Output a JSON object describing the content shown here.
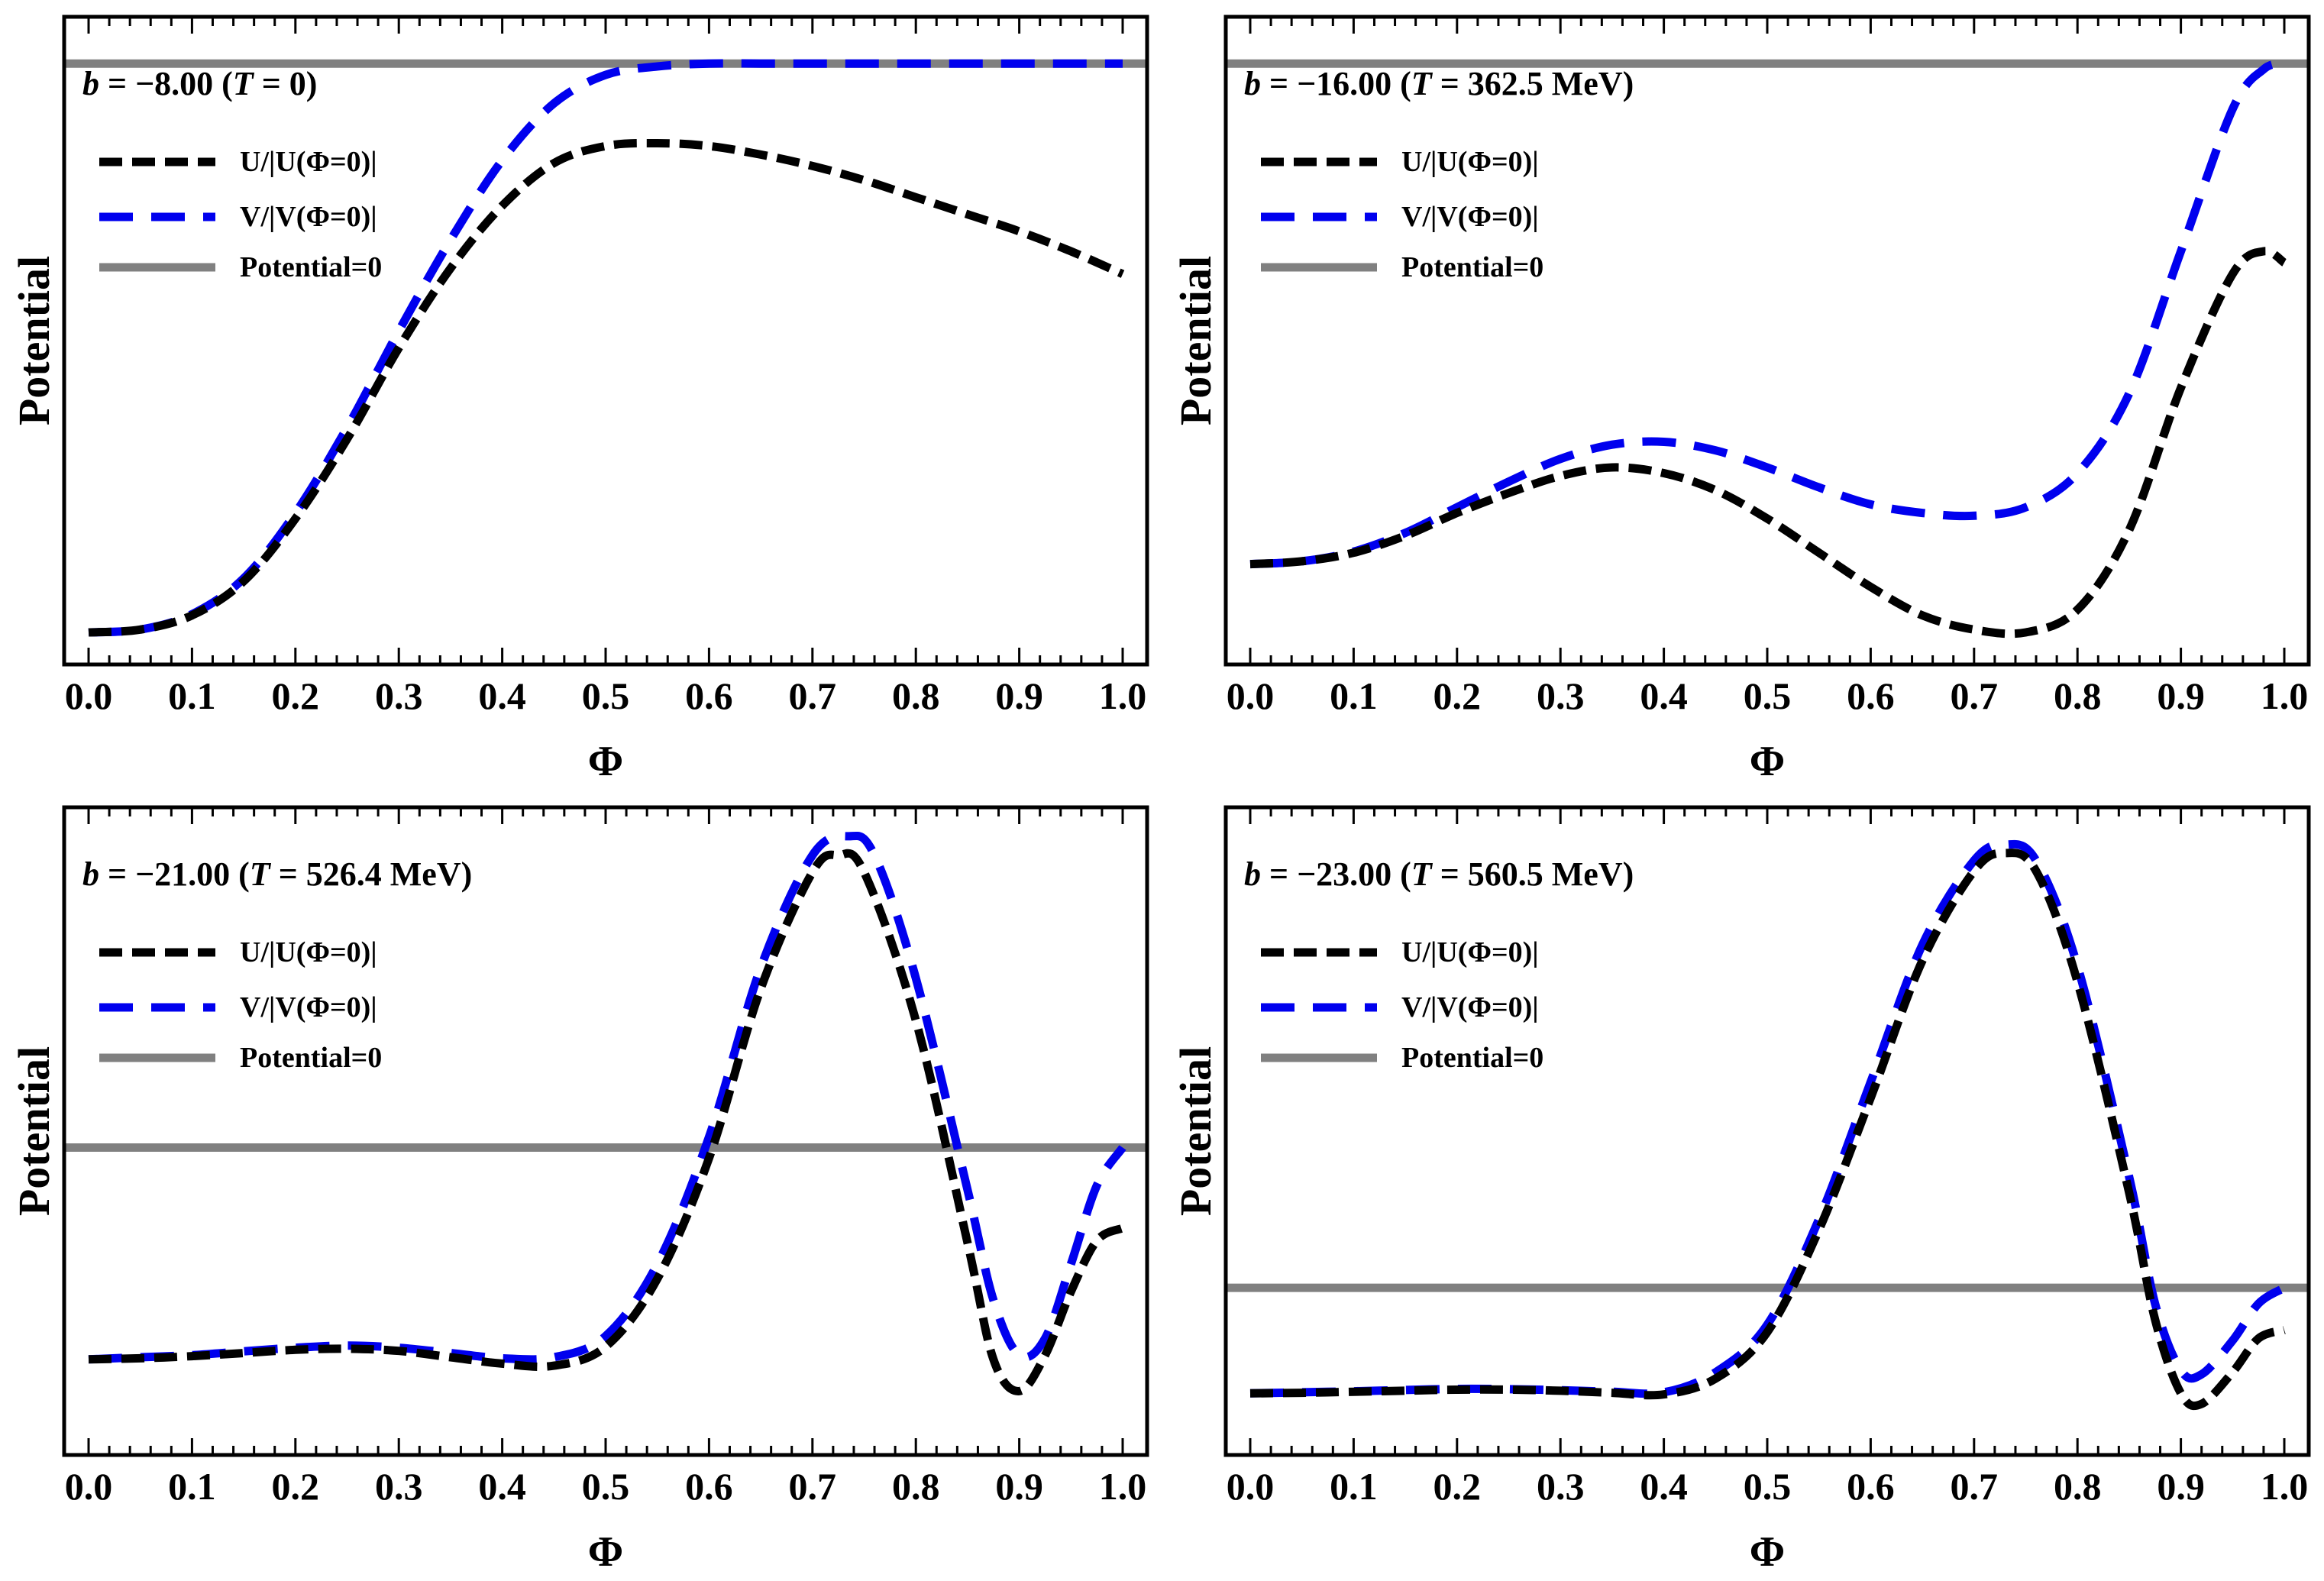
{
  "figure": {
    "panel_count": 4,
    "layout": "2x2 grid"
  },
  "chart_data": [
    {
      "type": "line",
      "title": "b = −8.00 (T = 0)",
      "title_parts": {
        "b_symbol": "b",
        "b_value": " = −8.00 (",
        "T_symbol": "T",
        "T_value": " = 0)"
      },
      "xlabel": "Φ",
      "ylabel": "Potential",
      "xlim": [
        0,
        1
      ],
      "ylim": [
        -1.0,
        0.05
      ],
      "xticks": [
        "0.0",
        "0.1",
        "0.2",
        "0.3",
        "0.4",
        "0.5",
        "0.6",
        "0.7",
        "0.8",
        "0.9",
        "1.0"
      ],
      "legend_position": "top-left",
      "series": [
        {
          "name": "U/|U(Φ=0)|",
          "style": "dashed",
          "color": "#000000",
          "x": [
            0,
            0.05,
            0.1,
            0.15,
            0.2,
            0.25,
            0.3,
            0.35,
            0.4,
            0.45,
            0.5,
            0.55,
            0.6,
            0.65,
            0.7,
            0.75,
            0.8,
            0.85,
            0.9,
            0.95,
            1.0
          ],
          "y": [
            -1.0,
            -0.995,
            -0.97,
            -0.91,
            -0.8,
            -0.66,
            -0.5,
            -0.36,
            -0.25,
            -0.175,
            -0.145,
            -0.14,
            -0.145,
            -0.16,
            -0.18,
            -0.205,
            -0.235,
            -0.265,
            -0.295,
            -0.33,
            -0.37
          ]
        },
        {
          "name": "V/|V(Φ=0)|",
          "style": "dashed",
          "color": "#0000ee",
          "x": [
            0,
            0.05,
            0.1,
            0.15,
            0.2,
            0.25,
            0.3,
            0.35,
            0.4,
            0.45,
            0.5,
            0.55,
            0.6,
            0.65,
            0.7,
            0.75,
            0.8,
            0.85,
            0.9,
            0.95,
            1.0
          ],
          "y": [
            -1.0,
            -0.995,
            -0.968,
            -0.905,
            -0.79,
            -0.64,
            -0.47,
            -0.31,
            -0.17,
            -0.07,
            -0.02,
            -0.005,
            0.0,
            0.0,
            0.0,
            0.0,
            0.0,
            0.0,
            0.0,
            0.0,
            0.0
          ]
        },
        {
          "name": "Potential=0",
          "style": "solid",
          "color": "#808080",
          "x": [
            0,
            1
          ],
          "y": [
            0,
            0
          ]
        }
      ]
    },
    {
      "type": "line",
      "title": "b = −16.00 (T = 362.5 MeV)",
      "title_parts": {
        "b_symbol": "b",
        "b_value": " = −16.00 (",
        "T_symbol": "T",
        "T_value": " = 362.5 MeV)"
      },
      "xlabel": "Φ",
      "ylabel": "Potential",
      "xlim": [
        0,
        1
      ],
      "ylim": [
        -1.0,
        0.05
      ],
      "xticks": [
        "0.0",
        "0.1",
        "0.2",
        "0.3",
        "0.4",
        "0.5",
        "0.6",
        "0.7",
        "0.8",
        "0.9",
        "1.0"
      ],
      "legend_position": "top-left",
      "series": [
        {
          "name": "U/|U(Φ=0)|",
          "style": "dashed",
          "color": "#000000",
          "x": [
            0,
            0.05,
            0.1,
            0.15,
            0.2,
            0.25,
            0.3,
            0.35,
            0.4,
            0.45,
            0.5,
            0.55,
            0.6,
            0.65,
            0.7,
            0.75,
            0.8,
            0.85,
            0.9,
            0.95,
            0.98,
            1.0
          ],
          "y": [
            -0.88,
            -0.875,
            -0.86,
            -0.83,
            -0.79,
            -0.755,
            -0.725,
            -0.71,
            -0.72,
            -0.75,
            -0.8,
            -0.86,
            -0.92,
            -0.97,
            -0.995,
            -1.0,
            -0.96,
            -0.82,
            -0.57,
            -0.37,
            -0.33,
            -0.35
          ]
        },
        {
          "name": "V/|V(Φ=0)|",
          "style": "dashed",
          "color": "#0000ee",
          "x": [
            0,
            0.05,
            0.1,
            0.15,
            0.2,
            0.25,
            0.3,
            0.35,
            0.4,
            0.45,
            0.5,
            0.55,
            0.6,
            0.65,
            0.7,
            0.75,
            0.8,
            0.85,
            0.9,
            0.95,
            0.98,
            1.0
          ],
          "y": [
            -0.88,
            -0.875,
            -0.858,
            -0.825,
            -0.78,
            -0.735,
            -0.695,
            -0.67,
            -0.665,
            -0.68,
            -0.71,
            -0.745,
            -0.775,
            -0.79,
            -0.795,
            -0.78,
            -0.72,
            -0.58,
            -0.33,
            -0.08,
            -0.01,
            0.0
          ]
        },
        {
          "name": "Potential=0",
          "style": "solid",
          "color": "#808080",
          "x": [
            0,
            1
          ],
          "y": [
            0,
            0
          ]
        }
      ]
    },
    {
      "type": "line",
      "title": "b = −21.00 (T = 526.4 MeV)",
      "title_parts": {
        "b_symbol": "b",
        "b_value": " = −21.00 (",
        "T_symbol": "T",
        "T_value": " = 526.4 MeV)"
      },
      "xlabel": "Φ",
      "ylabel": "Potential",
      "xlim": [
        0,
        1
      ],
      "ylim": [
        -1.3,
        1.52
      ],
      "xticks": [
        "0.0",
        "0.1",
        "0.2",
        "0.3",
        "0.4",
        "0.5",
        "0.6",
        "0.7",
        "0.8",
        "0.9",
        "1.0"
      ],
      "legend_position": "top-left",
      "series": [
        {
          "name": "U/|U(Φ=0)|",
          "style": "dashed",
          "color": "#000000",
          "x": [
            0,
            0.05,
            0.1,
            0.15,
            0.2,
            0.25,
            0.3,
            0.35,
            0.4,
            0.45,
            0.5,
            0.55,
            0.6,
            0.65,
            0.7,
            0.725,
            0.75,
            0.8,
            0.85,
            0.875,
            0.9,
            0.925,
            0.95,
            0.975,
            1.0
          ],
          "y": [
            -1.0,
            -0.995,
            -0.985,
            -0.97,
            -0.955,
            -0.95,
            -0.96,
            -0.99,
            -1.02,
            -1.03,
            -0.94,
            -0.62,
            -0.05,
            0.75,
            1.3,
            1.38,
            1.3,
            0.6,
            -0.45,
            -1.0,
            -1.15,
            -0.98,
            -0.68,
            -0.44,
            -0.38
          ]
        },
        {
          "name": "V/|V(Φ=0)|",
          "style": "dashed",
          "color": "#0000ee",
          "x": [
            0,
            0.05,
            0.1,
            0.15,
            0.2,
            0.25,
            0.3,
            0.35,
            0.4,
            0.45,
            0.5,
            0.55,
            0.6,
            0.65,
            0.7,
            0.735,
            0.76,
            0.8,
            0.85,
            0.875,
            0.9,
            0.925,
            0.95,
            0.975,
            1.0
          ],
          "y": [
            -1.0,
            -0.99,
            -0.98,
            -0.962,
            -0.945,
            -0.935,
            -0.945,
            -0.97,
            -0.995,
            -0.99,
            -0.89,
            -0.55,
            0.05,
            0.85,
            1.38,
            1.47,
            1.38,
            0.8,
            -0.2,
            -0.72,
            -0.98,
            -0.9,
            -0.55,
            -0.18,
            0.0
          ]
        },
        {
          "name": "Potential=0",
          "style": "solid",
          "color": "#808080",
          "x": [
            0,
            1
          ],
          "y": [
            0,
            0
          ]
        }
      ]
    },
    {
      "type": "line",
      "title": "b = −23.00 (T = 560.5 MeV)",
      "title_parts": {
        "b_symbol": "b",
        "b_value": " = −23.00 (",
        "T_symbol": "T",
        "T_value": " = 560.5 MeV)"
      },
      "xlabel": "Φ",
      "ylabel": "Potential",
      "xlim": [
        0,
        1
      ],
      "ylim": [
        -1.28,
        4.38
      ],
      "xticks": [
        "0.0",
        "0.1",
        "0.2",
        "0.3",
        "0.4",
        "0.5",
        "0.6",
        "0.7",
        "0.8",
        "0.9",
        "1.0"
      ],
      "legend_position": "top-left",
      "series": [
        {
          "name": "U/|U(Φ=0)|",
          "style": "dashed",
          "color": "#000000",
          "x": [
            0,
            0.05,
            0.1,
            0.15,
            0.2,
            0.25,
            0.3,
            0.35,
            0.4,
            0.45,
            0.5,
            0.55,
            0.6,
            0.65,
            0.7,
            0.73,
            0.76,
            0.8,
            0.85,
            0.875,
            0.9,
            0.92,
            0.95,
            0.975,
            1.0
          ],
          "y": [
            -1.0,
            -0.995,
            -0.985,
            -0.975,
            -0.965,
            -0.965,
            -0.975,
            -0.995,
            -1.01,
            -0.86,
            -0.42,
            0.55,
            1.8,
            3.1,
            3.95,
            4.12,
            3.95,
            2.9,
            0.9,
            -0.3,
            -1.0,
            -1.1,
            -0.8,
            -0.48,
            -0.4
          ]
        },
        {
          "name": "V/|V(Φ=0)|",
          "style": "dashed",
          "color": "#0000ee",
          "x": [
            0,
            0.05,
            0.1,
            0.15,
            0.2,
            0.25,
            0.3,
            0.35,
            0.4,
            0.45,
            0.5,
            0.55,
            0.6,
            0.65,
            0.7,
            0.73,
            0.76,
            0.8,
            0.85,
            0.875,
            0.9,
            0.92,
            0.95,
            0.975,
            1.0
          ],
          "y": [
            -1.0,
            -0.99,
            -0.98,
            -0.968,
            -0.958,
            -0.96,
            -0.97,
            -0.985,
            -0.99,
            -0.8,
            -0.35,
            0.65,
            1.95,
            3.25,
            4.05,
            4.2,
            4.05,
            3.05,
            1.05,
            -0.15,
            -0.78,
            -0.82,
            -0.5,
            -0.15,
            0.0
          ]
        },
        {
          "name": "Potential=0",
          "style": "solid",
          "color": "#808080",
          "x": [
            0,
            1
          ],
          "y": [
            0,
            0
          ]
        }
      ]
    }
  ]
}
